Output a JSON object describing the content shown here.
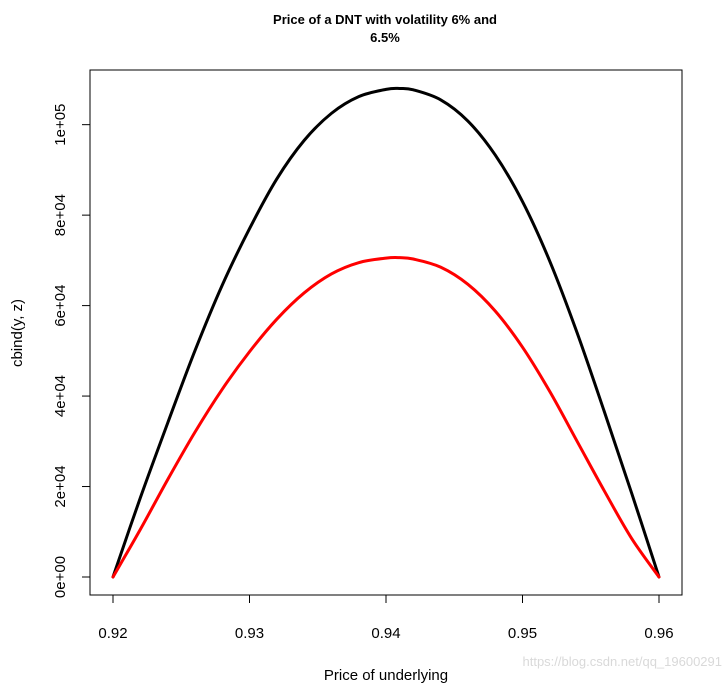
{
  "chart_data": {
    "type": "line",
    "title_lines": [
      "Price of a DNT with volatility 6% and",
      "6.5%"
    ],
    "xlabel": "Price of underlying",
    "ylabel": "cbind(y, z)",
    "xlim": [
      0.92,
      0.96
    ],
    "ylim": [
      0,
      107000
    ],
    "x_ticks": [
      0.92,
      0.93,
      0.94,
      0.95,
      0.96
    ],
    "x_tick_labels": [
      "0.92",
      "0.93",
      "0.94",
      "0.95",
      "0.96"
    ],
    "y_ticks": [
      0,
      20000,
      40000,
      60000,
      80000,
      100000
    ],
    "y_tick_labels": [
      "0e+00",
      "2e+04",
      "4e+04",
      "6e+04",
      "8e+04",
      "1e+05"
    ],
    "grid": false,
    "series": [
      {
        "color": "#000000",
        "x": [
          0.92,
          0.922,
          0.924,
          0.926,
          0.928,
          0.93,
          0.932,
          0.934,
          0.936,
          0.938,
          0.94,
          0.941,
          0.942,
          0.944,
          0.946,
          0.948,
          0.95,
          0.952,
          0.954,
          0.956,
          0.958,
          0.96
        ],
        "values": [
          0,
          17500,
          34000,
          50000,
          64500,
          77000,
          88000,
          96500,
          102500,
          106200,
          107800,
          108000,
          107700,
          105500,
          100800,
          93300,
          83000,
          69800,
          54000,
          36500,
          18500,
          0
        ]
      },
      {
        "color": "#ff0000",
        "x": [
          0.92,
          0.922,
          0.924,
          0.926,
          0.928,
          0.93,
          0.932,
          0.934,
          0.936,
          0.938,
          0.94,
          0.941,
          0.942,
          0.944,
          0.946,
          0.948,
          0.95,
          0.952,
          0.954,
          0.956,
          0.958,
          0.96
        ],
        "values": [
          0,
          10500,
          21500,
          32000,
          41500,
          49800,
          57000,
          62800,
          67000,
          69500,
          70500,
          70600,
          70300,
          68500,
          64700,
          58800,
          50800,
          41000,
          30000,
          19000,
          8500,
          0
        ]
      }
    ]
  },
  "watermark": "https://blog.csdn.net/qq_19600291"
}
